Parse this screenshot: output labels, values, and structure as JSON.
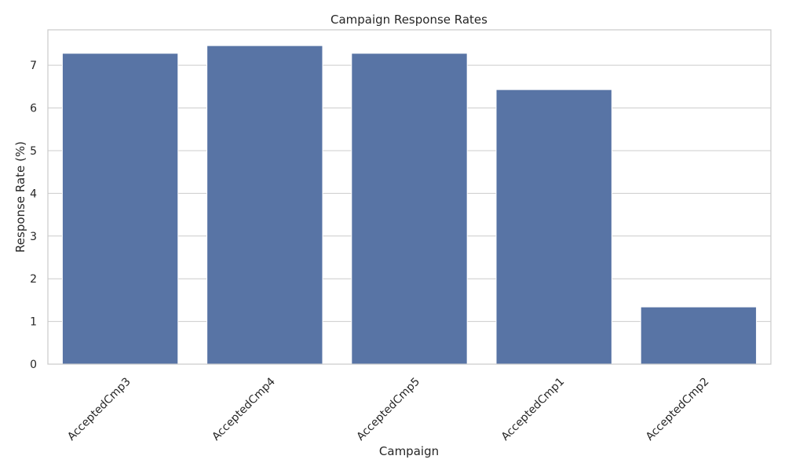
{
  "chart_data": {
    "type": "bar",
    "title": "Campaign Response Rates",
    "xlabel": "Campaign",
    "ylabel": "Response Rate (%)",
    "categories": [
      "AcceptedCmp3",
      "AcceptedCmp4",
      "AcceptedCmp5",
      "AcceptedCmp1",
      "AcceptedCmp2"
    ],
    "values": [
      7.28,
      7.46,
      7.28,
      6.43,
      1.34
    ],
    "ylim": [
      0,
      7.83
    ],
    "yticks": [
      0,
      1,
      2,
      3,
      4,
      5,
      6,
      7
    ],
    "grid": true,
    "xtick_rotation": "45 degrees",
    "colors": {
      "bar": "#5874a5",
      "grid": "#cccccc",
      "axes_frame": "#cccccc",
      "background": "#ffffff"
    }
  }
}
